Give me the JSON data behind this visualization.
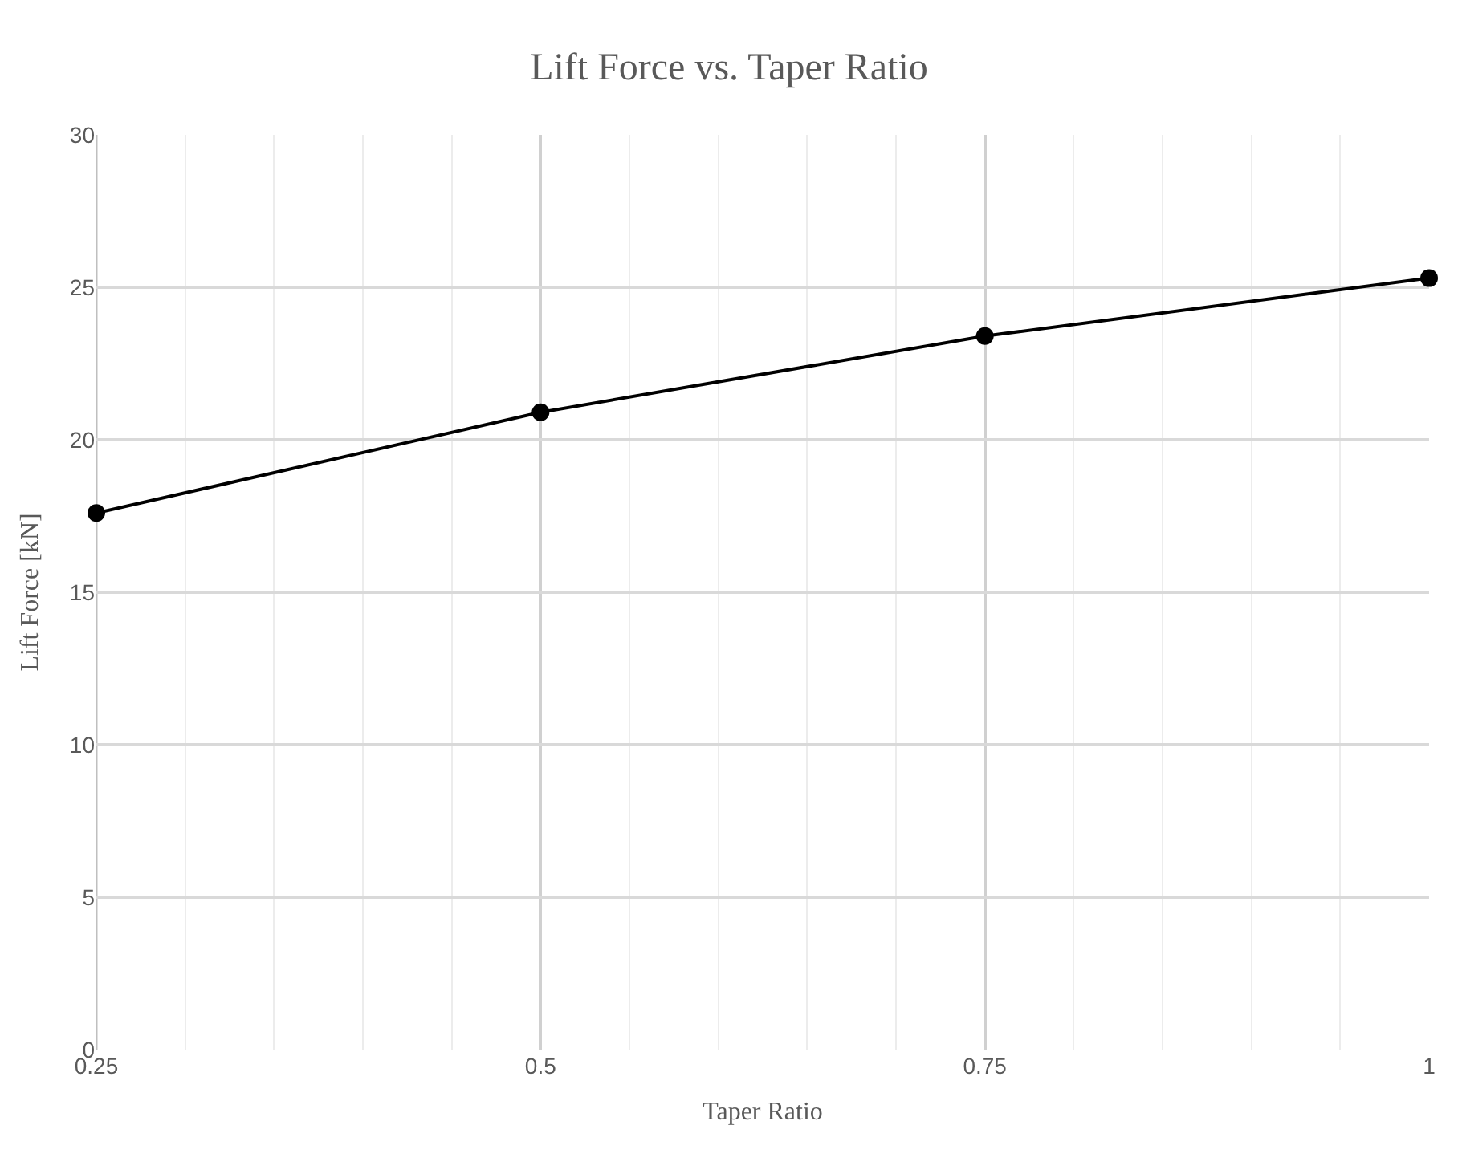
{
  "chart_data": {
    "type": "line",
    "title": "Lift Force vs. Taper Ratio",
    "xlabel": "Taper Ratio",
    "ylabel": "Lift Force [kN]",
    "x": [
      0.25,
      0.5,
      0.75,
      1
    ],
    "series": [
      {
        "color": "#000000",
        "values": [
          17.6,
          20.9,
          23.4,
          25.3
        ]
      }
    ],
    "xlim": [
      0.25,
      1
    ],
    "xticks": [
      0.25,
      0.5,
      0.75,
      1
    ],
    "ylim": [
      0,
      30
    ],
    "yticks": [
      0,
      5,
      10,
      15,
      20,
      25,
      30
    ],
    "grid": true,
    "marker": "circle",
    "line_style": "solid",
    "legend": false
  }
}
